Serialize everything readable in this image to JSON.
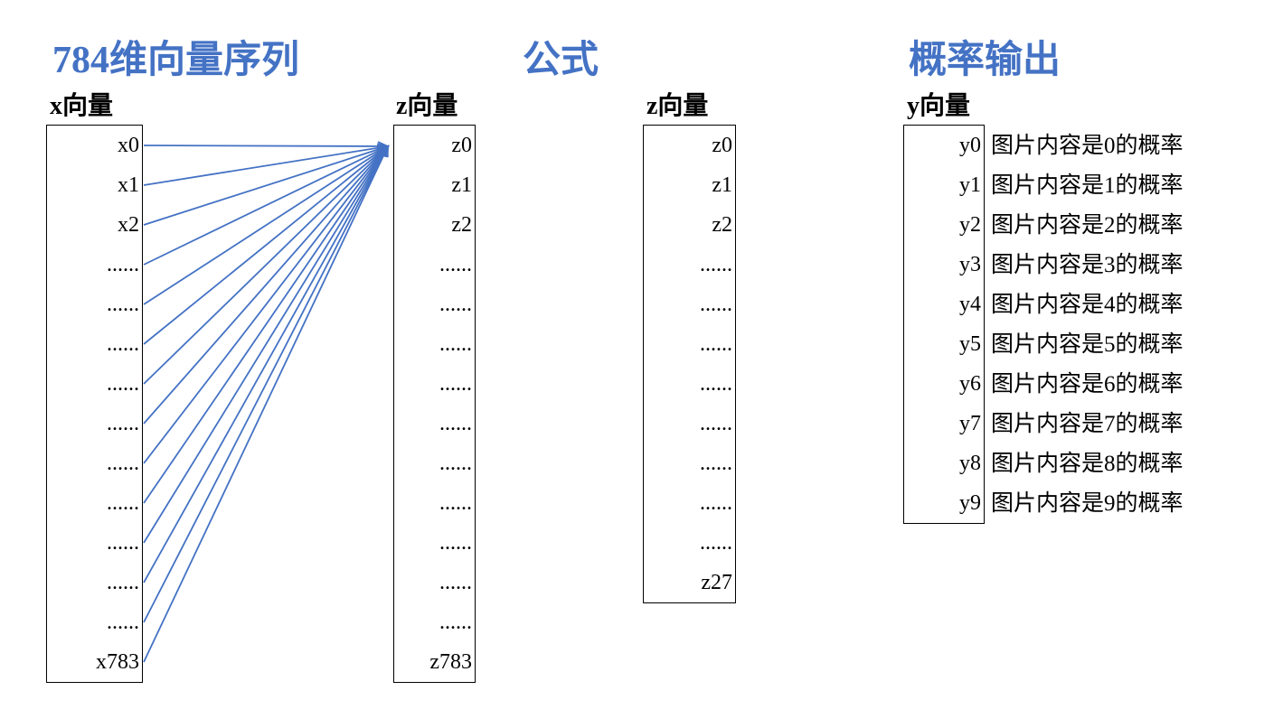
{
  "headings": {
    "input": "784维向量序列",
    "formula": "公式",
    "output": "概率输出"
  },
  "x_vector": {
    "label": "x向量",
    "entries": [
      "x0",
      "x1",
      "x2",
      "......",
      "......",
      "......",
      "......",
      "......",
      "......",
      "......",
      "......",
      "......",
      "......",
      "x783"
    ]
  },
  "z_vector_first": {
    "label": "z向量",
    "entries": [
      "z0",
      "z1",
      "z2",
      "......",
      "......",
      "......",
      "......",
      "......",
      "......",
      "......",
      "......",
      "......",
      "......",
      "z783"
    ]
  },
  "z_vector_second": {
    "label": "z向量",
    "entries": [
      "z0",
      "z1",
      "z2",
      "......",
      "......",
      "......",
      "......",
      "......",
      "......",
      "......",
      "......",
      "z27"
    ]
  },
  "y_vector": {
    "label": "y向量",
    "entries": [
      "y0",
      "y1",
      "y2",
      "y3",
      "y4",
      "y5",
      "y6",
      "y7",
      "y8",
      "y9"
    ],
    "descriptions": [
      "图片内容是0的概率",
      "图片内容是1的概率",
      "图片内容是2的概率",
      "图片内容是3的概率",
      "图片内容是4的概率",
      "图片内容是5的概率",
      "图片内容是6的概率",
      "图片内容是7的概率",
      "图片内容是8的概率",
      "图片内容是9的概率"
    ]
  },
  "colors": {
    "heading": "#4472C4",
    "arrow": "#4472C4"
  }
}
